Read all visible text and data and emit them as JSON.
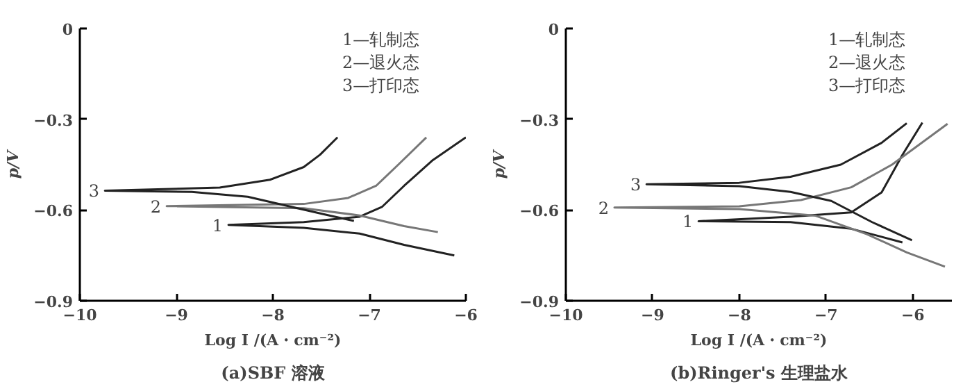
{
  "chart_data": [
    {
      "type": "line",
      "title": "(a)SBF 溶液",
      "xlabel": "Log I /(A・cm⁻²)",
      "ylabel": "p/V",
      "xlim": [
        -10,
        -6
      ],
      "ylim": [
        -0.9,
        0
      ],
      "xticks": [
        -10,
        -9,
        -8,
        -7,
        -6
      ],
      "yticks": [
        0,
        -0.3,
        -0.6,
        -0.9
      ],
      "series": [
        {
          "color": "#222222",
          "x": [
            -6.12,
            -6.64,
            -7.1,
            -7.68,
            -8.46,
            -7.68,
            -7.1,
            -6.87,
            -6.64,
            -6.35,
            -6.0
          ],
          "values": [
            -0.75,
            -0.715,
            -0.678,
            -0.659,
            -0.649,
            -0.64,
            -0.622,
            -0.59,
            -0.52,
            -0.437,
            -0.36
          ]
        },
        {
          "color": "#777777",
          "x": [
            -6.29,
            -6.64,
            -7.1,
            -7.68,
            -9.1,
            -7.68,
            -7.22,
            -6.93,
            -6.7,
            -6.41
          ],
          "values": [
            -0.673,
            -0.653,
            -0.618,
            -0.594,
            -0.587,
            -0.58,
            -0.56,
            -0.52,
            -0.45,
            -0.36
          ]
        },
        {
          "color": "#222222",
          "x": [
            -7.16,
            -7.39,
            -7.8,
            -8.26,
            -8.84,
            -9.74,
            -8.55,
            -8.03,
            -7.68,
            -7.51,
            -7.33
          ],
          "values": [
            -0.636,
            -0.62,
            -0.59,
            -0.556,
            -0.54,
            -0.536,
            -0.526,
            -0.5,
            -0.458,
            -0.417,
            -0.36
          ]
        }
      ],
      "annotations": [
        "1—轧制态",
        "2—退火态",
        "3—打印态",
        {
          "text": "1",
          "x": -8.46,
          "y": -0.649
        },
        {
          "text": "2",
          "x": -9.1,
          "y": -0.587
        },
        {
          "text": "3",
          "x": -9.74,
          "y": -0.536
        }
      ]
    },
    {
      "type": "line",
      "title": "(b)Ringer's 生理盐水",
      "xlabel": "Log I /(A・cm⁻²)",
      "ylabel": "p/V",
      "xlim": [
        -10,
        -5.55
      ],
      "ylim": [
        -0.9,
        0
      ],
      "xticks": [
        -10,
        -9,
        -8,
        -7,
        -6
      ],
      "yticks": [
        0,
        -0.3,
        -0.6,
        -0.9
      ],
      "series": [
        {
          "color": "#222222",
          "x": [
            -6.12,
            -6.71,
            -7.41,
            -8.47,
            -7.41,
            -6.71,
            -6.36,
            -6.12,
            -5.89
          ],
          "values": [
            -0.707,
            -0.662,
            -0.64,
            -0.637,
            -0.622,
            -0.608,
            -0.542,
            -0.418,
            -0.311
          ]
        },
        {
          "color": "#777777",
          "x": [
            -5.63,
            -6.07,
            -6.53,
            -7.12,
            -8.0,
            -9.44,
            -8.0,
            -7.29,
            -6.71,
            -6.24,
            -5.6
          ],
          "values": [
            -0.787,
            -0.74,
            -0.68,
            -0.619,
            -0.597,
            -0.592,
            -0.588,
            -0.567,
            -0.525,
            -0.45,
            -0.315
          ]
        },
        {
          "color": "#222222",
          "x": [
            -6.01,
            -6.47,
            -6.94,
            -7.41,
            -8.0,
            -9.07,
            -8.0,
            -7.41,
            -6.83,
            -6.36,
            -6.07
          ],
          "values": [
            -0.7,
            -0.64,
            -0.57,
            -0.54,
            -0.521,
            -0.515,
            -0.51,
            -0.49,
            -0.45,
            -0.378,
            -0.313
          ]
        }
      ],
      "annotations": [
        "1—轧制态",
        "2—退火态",
        "3—打印态",
        {
          "text": "1",
          "x": -8.47,
          "y": -0.637
        },
        {
          "text": "2",
          "x": -9.44,
          "y": -0.592
        },
        {
          "text": "3",
          "x": -9.07,
          "y": -0.515
        }
      ]
    }
  ]
}
